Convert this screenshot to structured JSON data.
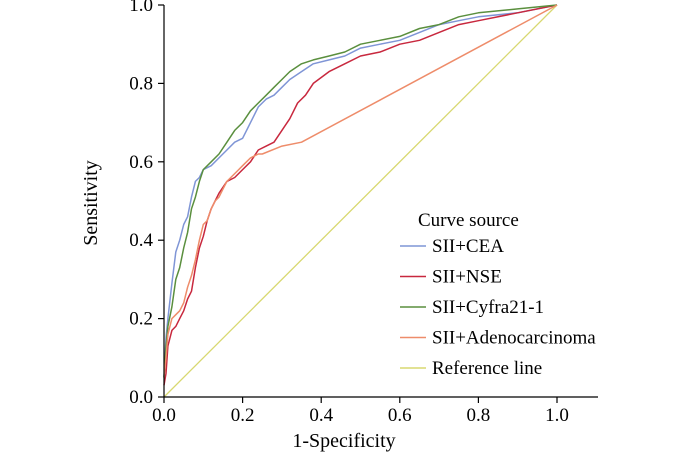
{
  "chart_data": {
    "type": "line",
    "title": "",
    "xlabel": "1-Specificity",
    "ylabel": "Sensitivity",
    "xlim": [
      0,
      1.1
    ],
    "ylim": [
      0,
      1.0
    ],
    "xticks": [
      "0.0",
      "0.2",
      "0.4",
      "0.6",
      "0.8",
      "1.0"
    ],
    "yticks": [
      "0.0",
      "0.2",
      "0.4",
      "0.6",
      "0.8",
      "1.0"
    ],
    "legend": {
      "title": "Curve source",
      "placement": "bottom-right",
      "entries": [
        "SII+CEA",
        "SII+NSE",
        "SII+Cyfra21-1",
        "SII+Adenocarcinoma",
        "Reference line"
      ]
    },
    "series": [
      {
        "name": "SII+CEA",
        "color": "#7f95d6",
        "x": [
          0,
          0.005,
          0.01,
          0.02,
          0.03,
          0.04,
          0.05,
          0.06,
          0.07,
          0.08,
          0.09,
          0.1,
          0.12,
          0.14,
          0.16,
          0.18,
          0.2,
          0.22,
          0.24,
          0.26,
          0.28,
          0.3,
          0.32,
          0.35,
          0.38,
          0.42,
          0.46,
          0.5,
          0.55,
          0.6,
          0.65,
          0.7,
          0.75,
          0.8,
          0.9,
          1.0
        ],
        "y": [
          0.05,
          0.15,
          0.2,
          0.29,
          0.37,
          0.4,
          0.44,
          0.46,
          0.51,
          0.55,
          0.56,
          0.58,
          0.59,
          0.61,
          0.63,
          0.65,
          0.66,
          0.7,
          0.74,
          0.76,
          0.77,
          0.79,
          0.81,
          0.83,
          0.85,
          0.86,
          0.87,
          0.89,
          0.9,
          0.91,
          0.93,
          0.95,
          0.96,
          0.97,
          0.98,
          1.0
        ]
      },
      {
        "name": "SII+NSE",
        "color": "#c8283e",
        "x": [
          0,
          0.005,
          0.01,
          0.02,
          0.03,
          0.04,
          0.05,
          0.06,
          0.07,
          0.08,
          0.09,
          0.1,
          0.11,
          0.12,
          0.13,
          0.14,
          0.16,
          0.18,
          0.2,
          0.22,
          0.24,
          0.26,
          0.28,
          0.3,
          0.32,
          0.34,
          0.36,
          0.38,
          0.42,
          0.46,
          0.5,
          0.55,
          0.6,
          0.65,
          0.7,
          0.75,
          0.8,
          0.9,
          1.0
        ],
        "y": [
          0.03,
          0.06,
          0.13,
          0.17,
          0.18,
          0.2,
          0.22,
          0.25,
          0.27,
          0.33,
          0.38,
          0.41,
          0.45,
          0.48,
          0.5,
          0.52,
          0.55,
          0.56,
          0.58,
          0.6,
          0.63,
          0.64,
          0.65,
          0.68,
          0.71,
          0.75,
          0.77,
          0.8,
          0.83,
          0.85,
          0.87,
          0.88,
          0.9,
          0.91,
          0.93,
          0.95,
          0.96,
          0.98,
          1.0
        ]
      },
      {
        "name": "SII+Cyfra21-1",
        "color": "#5a8f3e",
        "x": [
          0,
          0.005,
          0.01,
          0.02,
          0.03,
          0.04,
          0.05,
          0.06,
          0.07,
          0.08,
          0.09,
          0.1,
          0.12,
          0.14,
          0.16,
          0.18,
          0.2,
          0.22,
          0.24,
          0.26,
          0.28,
          0.3,
          0.32,
          0.35,
          0.38,
          0.42,
          0.46,
          0.5,
          0.55,
          0.6,
          0.65,
          0.7,
          0.75,
          0.8,
          0.9,
          1.0
        ],
        "y": [
          0.05,
          0.13,
          0.18,
          0.23,
          0.3,
          0.33,
          0.38,
          0.42,
          0.48,
          0.51,
          0.55,
          0.58,
          0.6,
          0.62,
          0.65,
          0.68,
          0.7,
          0.73,
          0.75,
          0.77,
          0.79,
          0.81,
          0.83,
          0.85,
          0.86,
          0.87,
          0.88,
          0.9,
          0.91,
          0.92,
          0.94,
          0.95,
          0.97,
          0.98,
          0.99,
          1.0
        ]
      },
      {
        "name": "SII+Adenocarcinoma",
        "color": "#ee8c6a",
        "x": [
          0,
          0.005,
          0.01,
          0.02,
          0.03,
          0.04,
          0.05,
          0.06,
          0.07,
          0.08,
          0.09,
          0.1,
          0.11,
          0.12,
          0.13,
          0.14,
          0.15,
          0.16,
          0.17,
          0.18,
          0.19,
          0.2,
          0.22,
          0.24,
          0.25,
          0.3,
          0.35,
          1.0
        ],
        "y": [
          0.05,
          0.1,
          0.16,
          0.2,
          0.21,
          0.22,
          0.24,
          0.28,
          0.31,
          0.35,
          0.4,
          0.44,
          0.45,
          0.48,
          0.5,
          0.51,
          0.53,
          0.55,
          0.56,
          0.57,
          0.58,
          0.59,
          0.61,
          0.62,
          0.62,
          0.64,
          0.65,
          1.0
        ]
      },
      {
        "name": "Reference line",
        "color": "#d8d870",
        "x": [
          0,
          1.0
        ],
        "y": [
          0,
          1.0
        ]
      }
    ]
  }
}
